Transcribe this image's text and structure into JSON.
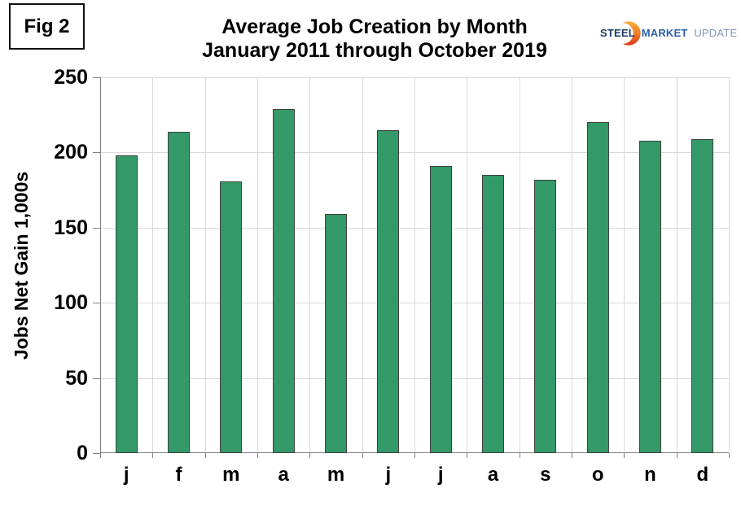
{
  "figure": {
    "label": "Fig 2"
  },
  "header": {
    "title": "Average Job Creation by Month",
    "subtitle": "January 2011 through October 2019"
  },
  "logo": {
    "steel": "STEEL",
    "market": "MARKET",
    "update": "UPDATE",
    "colors": {
      "steel": "#1a3a66",
      "market": "#2d5fa8",
      "update": "#8096b8",
      "arc_top": "#f9b03c",
      "arc_mid": "#ef7a24",
      "arc_bottom": "#d93a20"
    }
  },
  "chart_data": {
    "type": "bar",
    "title": "Average Job Creation by Month",
    "subtitle": "January 2011 through October 2019",
    "xlabel": "",
    "ylabel": "Jobs Net Gain 1,000s",
    "categories": [
      "j",
      "f",
      "m",
      "a",
      "m",
      "j",
      "j",
      "a",
      "s",
      "o",
      "n",
      "d"
    ],
    "values": [
      198,
      214,
      181,
      229,
      159,
      215,
      191,
      185,
      182,
      220,
      208,
      209
    ],
    "ylim": [
      0,
      250
    ],
    "ytick_step": 50,
    "grid": true,
    "legend": false,
    "bar_color": "#339966",
    "bar_border_color": "#404040",
    "gridline_color": "#d9d9d9",
    "axis_color": "#808080"
  }
}
